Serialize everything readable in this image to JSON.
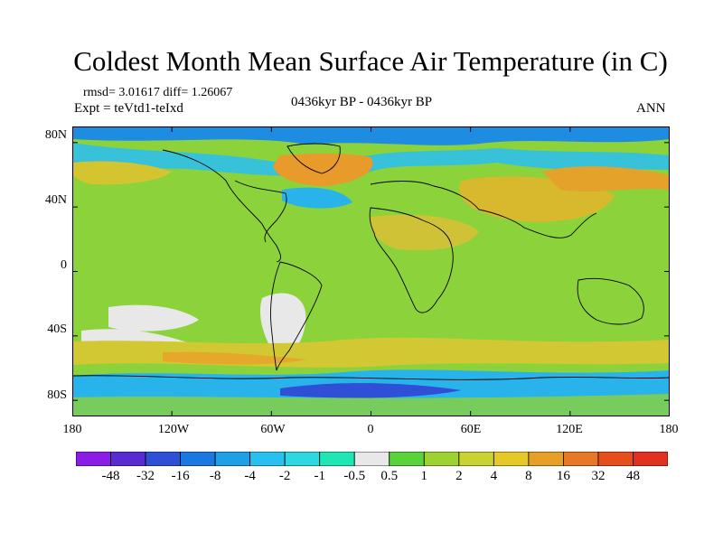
{
  "title": "Coldest Month Mean Surface Air Temperature (in C)",
  "stats": "rmsd= 3.01617 diff= 1.26067",
  "expt": "Expt = teVtd1-teIxd",
  "period": "0436kyr BP - 0436kyr BP",
  "season": "ANN",
  "map": {
    "lat_ticks": [
      "80N",
      "40N",
      "0",
      "40S",
      "80S"
    ],
    "lat_values": [
      80,
      40,
      0,
      -40,
      -80
    ],
    "lon_ticks": [
      "180",
      "120W",
      "60W",
      "0",
      "60E",
      "120E",
      "180"
    ],
    "lon_values": [
      -180,
      -120,
      -60,
      0,
      60,
      120,
      180
    ],
    "lat_range": [
      -90,
      90
    ],
    "lon_range": [
      -180,
      180
    ]
  },
  "colorbar": {
    "labels": [
      "-48",
      "-32",
      "-16",
      "-8",
      "-4",
      "-2",
      "-1",
      "-0.5",
      "0.5",
      "1",
      "2",
      "4",
      "8",
      "16",
      "32",
      "48"
    ],
    "colors": [
      "#8a1ee6",
      "#5a2ad2",
      "#2e4fd6",
      "#1a78e0",
      "#1ea0e6",
      "#28c0ee",
      "#2ed8e0",
      "#20e6b4",
      "#e8e8e8",
      "#5ad23c",
      "#9ed232",
      "#c8d232",
      "#e6c828",
      "#e6a028",
      "#e67828",
      "#e64e1e",
      "#e0321e"
    ]
  }
}
